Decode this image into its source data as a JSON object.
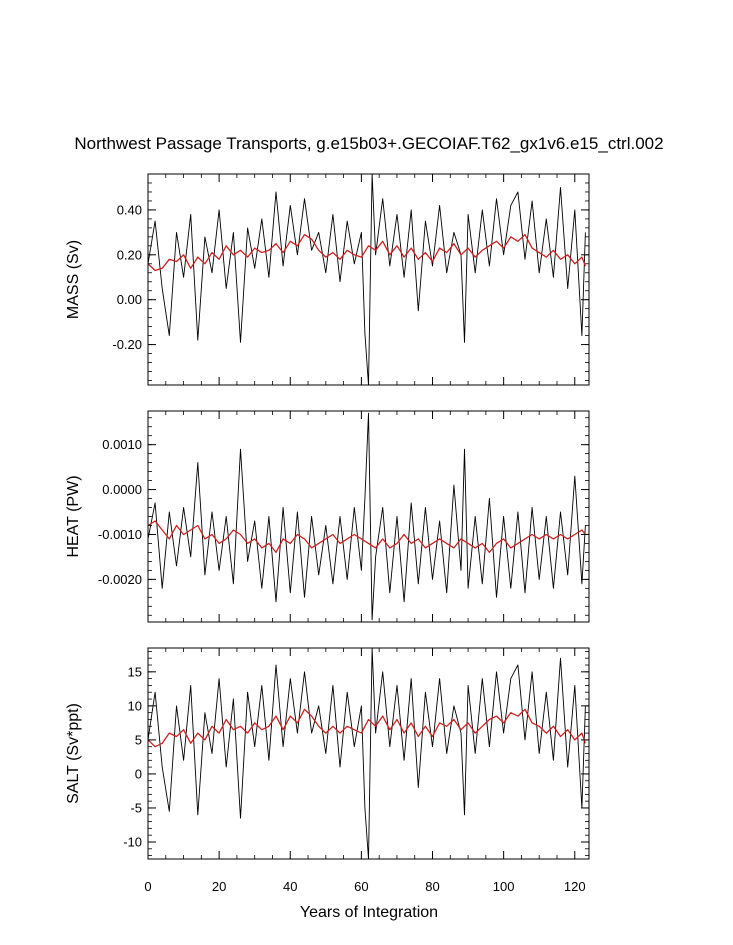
{
  "chart_data": {
    "type": "line",
    "title": "Northwest Passage Transports, g.e15b03+.GECOIAF.T62_gx1v6.e15_ctrl.002",
    "xlabel": "Years of Integration",
    "xlim": [
      0,
      124
    ],
    "x_ticks": [
      0,
      20,
      40,
      60,
      80,
      100,
      120
    ],
    "x_tick_labels": [
      "0",
      "20",
      "40",
      "60",
      "80",
      "100",
      "120"
    ],
    "colors": {
      "raw": "#000000",
      "smoothed": "#cc2222"
    },
    "panels": [
      {
        "name": "mass",
        "ylabel": "MASS (Sv)",
        "ylim": [
          -0.38,
          0.56
        ],
        "y_ticks": [
          -0.2,
          0.0,
          0.2,
          0.4
        ],
        "y_tick_labels": [
          "-0.20",
          "0.00",
          "0.20",
          "0.40"
        ],
        "series": [
          {
            "style": "raw",
            "x": [
              0,
              2,
              4,
              6,
              8,
              10,
              12,
              14,
              16,
              18,
              20,
              22,
              24,
              26,
              28,
              30,
              32,
              34,
              36,
              38,
              40,
              42,
              44,
              46,
              48,
              50,
              52,
              54,
              56,
              58,
              60,
              61,
              62,
              63,
              64,
              66,
              68,
              70,
              72,
              74,
              76,
              78,
              80,
              82,
              84,
              86,
              88,
              89,
              90,
              92,
              94,
              96,
              98,
              100,
              102,
              104,
              106,
              108,
              110,
              112,
              114,
              116,
              118,
              120,
              122,
              123
            ],
            "y": [
              0.16,
              0.35,
              0.05,
              -0.16,
              0.3,
              0.1,
              0.38,
              -0.18,
              0.28,
              0.12,
              0.4,
              0.05,
              0.3,
              -0.19,
              0.32,
              0.14,
              0.36,
              0.1,
              0.48,
              0.15,
              0.42,
              0.2,
              0.45,
              0.22,
              0.3,
              0.12,
              0.38,
              0.08,
              0.35,
              0.16,
              0.3,
              -0.15,
              -0.38,
              0.56,
              0.2,
              0.45,
              0.15,
              0.38,
              0.1,
              0.4,
              -0.05,
              0.35,
              0.15,
              0.42,
              0.12,
              0.3,
              0.2,
              -0.19,
              0.38,
              0.12,
              0.4,
              0.15,
              0.45,
              0.2,
              0.42,
              0.48,
              0.18,
              0.44,
              0.12,
              0.36,
              0.1,
              0.5,
              0.05,
              0.4,
              -0.16,
              0.3
            ]
          },
          {
            "style": "smoothed",
            "x": [
              0,
              2,
              4,
              6,
              8,
              10,
              12,
              14,
              16,
              18,
              20,
              22,
              24,
              26,
              28,
              30,
              32,
              34,
              36,
              38,
              40,
              42,
              44,
              46,
              48,
              50,
              52,
              54,
              56,
              58,
              60,
              62,
              64,
              66,
              68,
              70,
              72,
              74,
              76,
              78,
              80,
              82,
              84,
              86,
              88,
              90,
              92,
              94,
              96,
              98,
              100,
              102,
              104,
              106,
              108,
              110,
              112,
              114,
              116,
              118,
              120,
              122,
              123
            ],
            "y": [
              0.16,
              0.13,
              0.14,
              0.18,
              0.17,
              0.2,
              0.14,
              0.19,
              0.16,
              0.21,
              0.18,
              0.24,
              0.2,
              0.22,
              0.19,
              0.23,
              0.21,
              0.22,
              0.25,
              0.21,
              0.26,
              0.24,
              0.29,
              0.27,
              0.22,
              0.19,
              0.21,
              0.18,
              0.22,
              0.2,
              0.19,
              0.24,
              0.22,
              0.26,
              0.2,
              0.24,
              0.19,
              0.23,
              0.18,
              0.21,
              0.17,
              0.23,
              0.21,
              0.25,
              0.2,
              0.23,
              0.19,
              0.22,
              0.24,
              0.26,
              0.23,
              0.28,
              0.26,
              0.29,
              0.23,
              0.21,
              0.19,
              0.22,
              0.18,
              0.2,
              0.16,
              0.19,
              0.15
            ]
          }
        ]
      },
      {
        "name": "heat",
        "ylabel": "HEAT (PW)",
        "ylim": [
          -0.00295,
          0.00175
        ],
        "y_ticks": [
          -0.002,
          -0.001,
          0.0,
          0.001
        ],
        "y_tick_labels": [
          "-0.0020",
          "-0.0010",
          "0.0000",
          "0.0010"
        ],
        "series": [
          {
            "style": "raw",
            "x": [
              0,
              2,
              4,
              6,
              8,
              10,
              12,
              14,
              16,
              18,
              20,
              22,
              24,
              26,
              28,
              30,
              32,
              34,
              36,
              38,
              40,
              42,
              44,
              46,
              48,
              50,
              52,
              54,
              56,
              58,
              60,
              61,
              62,
              63,
              64,
              66,
              68,
              70,
              72,
              74,
              76,
              78,
              80,
              82,
              84,
              86,
              88,
              89,
              90,
              92,
              94,
              96,
              98,
              100,
              102,
              104,
              106,
              108,
              110,
              112,
              114,
              116,
              118,
              120,
              122,
              123
            ],
            "y": [
              -0.0011,
              -0.0003,
              -0.0022,
              -0.0005,
              -0.0017,
              -0.0004,
              -0.0015,
              0.0006,
              -0.0019,
              -0.0005,
              -0.0018,
              -0.0006,
              -0.0021,
              0.0009,
              -0.0016,
              -0.0007,
              -0.0022,
              -0.0006,
              -0.0025,
              -0.0004,
              -0.0023,
              -0.0005,
              -0.0024,
              -0.0006,
              -0.0019,
              -0.0008,
              -0.0021,
              -0.0006,
              -0.002,
              -0.0004,
              -0.0018,
              -0.0002,
              0.0017,
              -0.0029,
              -0.0015,
              -0.0004,
              -0.0023,
              -0.0006,
              -0.0025,
              -0.0003,
              -0.0021,
              -0.0004,
              -0.002,
              -0.0007,
              -0.0023,
              0.0001,
              -0.0018,
              0.0009,
              -0.0022,
              -0.0006,
              -0.0021,
              -0.0002,
              -0.0024,
              -0.0006,
              -0.0022,
              -0.0005,
              -0.0023,
              -0.0004,
              -0.002,
              -0.0006,
              -0.0022,
              -0.0005,
              -0.0019,
              0.0003,
              -0.0021,
              -0.0008
            ]
          },
          {
            "style": "smoothed",
            "x": [
              0,
              2,
              4,
              6,
              8,
              10,
              12,
              14,
              16,
              18,
              20,
              22,
              24,
              26,
              28,
              30,
              32,
              34,
              36,
              38,
              40,
              42,
              44,
              46,
              48,
              50,
              52,
              54,
              56,
              58,
              60,
              62,
              64,
              66,
              68,
              70,
              72,
              74,
              76,
              78,
              80,
              82,
              84,
              86,
              88,
              90,
              92,
              94,
              96,
              98,
              100,
              102,
              104,
              106,
              108,
              110,
              112,
              114,
              116,
              118,
              120,
              122,
              123
            ],
            "y": [
              -0.0008,
              -0.0007,
              -0.0009,
              -0.0011,
              -0.0008,
              -0.001,
              -0.0009,
              -0.0008,
              -0.0011,
              -0.001,
              -0.0012,
              -0.0011,
              -0.0009,
              -0.001,
              -0.0012,
              -0.0011,
              -0.0013,
              -0.0012,
              -0.0014,
              -0.0011,
              -0.0012,
              -0.001,
              -0.0011,
              -0.0013,
              -0.0012,
              -0.0011,
              -0.001,
              -0.0012,
              -0.0011,
              -0.001,
              -0.0011,
              -0.0012,
              -0.0013,
              -0.0011,
              -0.0013,
              -0.0012,
              -0.001,
              -0.0012,
              -0.0011,
              -0.0013,
              -0.0012,
              -0.0011,
              -0.0012,
              -0.0013,
              -0.0011,
              -0.0012,
              -0.0013,
              -0.0012,
              -0.0014,
              -0.0012,
              -0.0011,
              -0.0013,
              -0.0012,
              -0.0011,
              -0.001,
              -0.0011,
              -0.001,
              -0.0011,
              -0.001,
              -0.0011,
              -0.001,
              -0.0009,
              -0.001
            ]
          }
        ]
      },
      {
        "name": "salt",
        "ylabel": "SALT (Sv*ppt)",
        "ylim": [
          -12.5,
          18.5
        ],
        "y_ticks": [
          -10,
          -5,
          0,
          5,
          10,
          15
        ],
        "y_tick_labels": [
          "-10",
          "-5",
          "0",
          "5",
          "10",
          "15"
        ],
        "series": [
          {
            "style": "raw",
            "x": [
              0,
              2,
              4,
              6,
              8,
              10,
              12,
              14,
              16,
              18,
              20,
              22,
              24,
              26,
              28,
              30,
              32,
              34,
              36,
              38,
              40,
              42,
              44,
              46,
              48,
              50,
              52,
              54,
              56,
              58,
              60,
              61,
              62,
              63,
              64,
              66,
              68,
              70,
              72,
              74,
              76,
              78,
              80,
              82,
              84,
              86,
              88,
              89,
              90,
              92,
              94,
              96,
              98,
              100,
              102,
              104,
              106,
              108,
              110,
              112,
              114,
              116,
              118,
              120,
              122,
              123
            ],
            "y": [
              5.0,
              12.0,
              1.0,
              -5.5,
              10.0,
              2.0,
              13.0,
              -6.0,
              9.0,
              3.0,
              14.0,
              1.0,
              11.0,
              -6.5,
              12.0,
              4.0,
              13.0,
              2.0,
              16.0,
              4.0,
              14.0,
              6.0,
              15.0,
              6.0,
              10.0,
              3.0,
              13.0,
              1.0,
              12.0,
              4.0,
              10.0,
              -5.0,
              -12.5,
              18.5,
              6.0,
              15.0,
              4.0,
              13.0,
              2.0,
              14.0,
              -2.0,
              12.0,
              4.0,
              14.0,
              3.0,
              10.0,
              6.0,
              -6.0,
              13.0,
              3.0,
              14.0,
              4.0,
              15.0,
              6.0,
              14.0,
              16.0,
              5.0,
              15.0,
              3.0,
              12.0,
              2.0,
              17.0,
              1.0,
              13.0,
              -5.0,
              10.0
            ]
          },
          {
            "style": "smoothed",
            "x": [
              0,
              2,
              4,
              6,
              8,
              10,
              12,
              14,
              16,
              18,
              20,
              22,
              24,
              26,
              28,
              30,
              32,
              34,
              36,
              38,
              40,
              42,
              44,
              46,
              48,
              50,
              52,
              54,
              56,
              58,
              60,
              62,
              64,
              66,
              68,
              70,
              72,
              74,
              76,
              78,
              80,
              82,
              84,
              86,
              88,
              90,
              92,
              94,
              96,
              98,
              100,
              102,
              104,
              106,
              108,
              110,
              112,
              114,
              116,
              118,
              120,
              122,
              123
            ],
            "y": [
              5.0,
              4.0,
              4.5,
              6.0,
              5.5,
              6.5,
              4.5,
              6.0,
              5.0,
              7.0,
              6.0,
              8.0,
              6.5,
              7.0,
              6.0,
              7.5,
              6.5,
              7.0,
              8.5,
              6.5,
              8.5,
              7.5,
              9.5,
              8.5,
              7.0,
              6.0,
              7.0,
              6.0,
              7.0,
              6.5,
              6.0,
              8.0,
              7.0,
              8.5,
              6.5,
              8.0,
              6.0,
              7.5,
              5.5,
              7.0,
              5.5,
              7.5,
              7.0,
              8.0,
              6.5,
              7.5,
              6.0,
              7.0,
              8.0,
              8.5,
              7.5,
              9.0,
              8.5,
              9.5,
              7.5,
              7.0,
              6.0,
              7.0,
              5.5,
              6.5,
              5.0,
              6.0,
              4.5
            ]
          }
        ]
      }
    ]
  }
}
